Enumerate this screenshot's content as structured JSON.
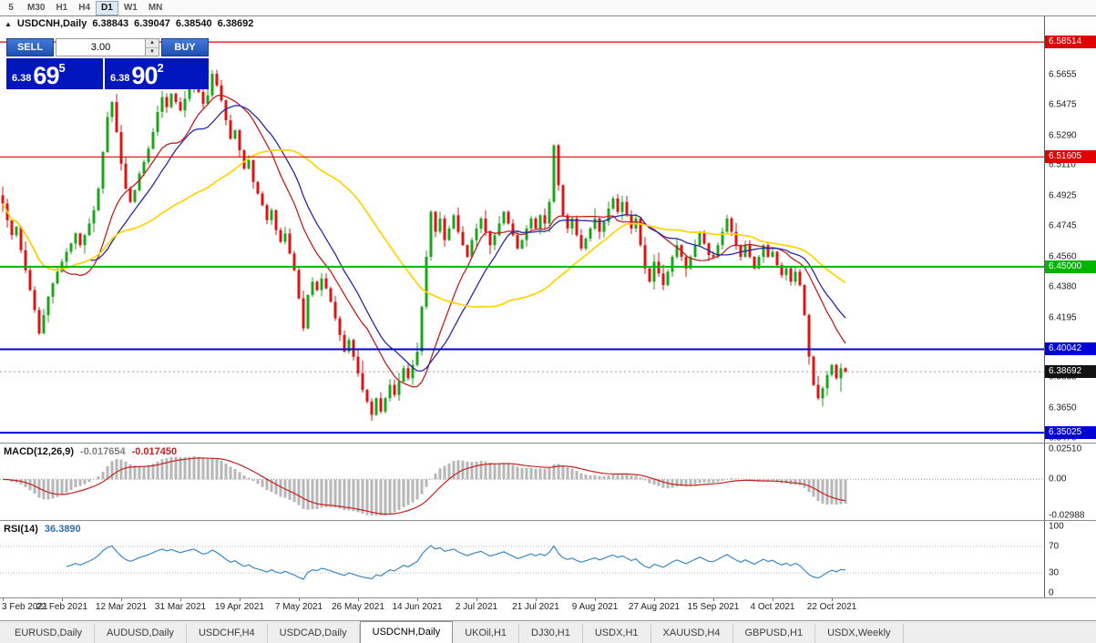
{
  "app": {
    "title": "USDCNH,Daily"
  },
  "toolbar": {
    "timeframes": [
      {
        "label": "5",
        "active": false
      },
      {
        "label": "M30",
        "active": false
      },
      {
        "label": "H1",
        "active": false
      },
      {
        "label": "H4",
        "active": false
      },
      {
        "label": "D1",
        "active": true
      },
      {
        "label": "W1",
        "active": false
      },
      {
        "label": "MN",
        "active": false
      }
    ]
  },
  "chart_header": {
    "collapse_icon": "▲",
    "symbol": "USDCNH,Daily",
    "open": "6.38843",
    "high": "6.39047",
    "low": "6.38540",
    "close": "6.38692"
  },
  "trade_widget": {
    "sell_label": "SELL",
    "buy_label": "BUY",
    "lot_value": "3.00",
    "spin_up": "▲",
    "spin_down": "▼",
    "sell_price": {
      "prefix": "6.38",
      "big": "69",
      "sup": "5"
    },
    "buy_price": {
      "prefix": "6.38",
      "big": "90",
      "sup": "2"
    }
  },
  "price_axis": {
    "labels": [
      6.5655,
      6.5475,
      6.529,
      6.511,
      6.4925,
      6.4745,
      6.456,
      6.438,
      6.4195,
      6.4015,
      6.3835,
      6.365,
      6.347
    ],
    "current_price_label": "6.38692",
    "current_price_color": "#121212"
  },
  "macd_panel": {
    "name": "MACD(12,26,9)",
    "value1": "-0.017654",
    "value2": "-0.017450",
    "axis": [
      "0.02510",
      "0.00",
      "-0.02988"
    ]
  },
  "rsi_panel": {
    "name": "RSI(14)",
    "value": "36.3890",
    "axis": [
      "100",
      "70",
      "30",
      "0"
    ]
  },
  "tabs": [
    {
      "label": "EURUSD,Daily",
      "active": false
    },
    {
      "label": "AUDUSD,Daily",
      "active": false
    },
    {
      "label": "USDCHF,H4",
      "active": false
    },
    {
      "label": "USDCAD,Daily",
      "active": false
    },
    {
      "label": "USDCNH,Daily",
      "active": true
    },
    {
      "label": "UKOil,H1",
      "active": false
    },
    {
      "label": "DJ30,H1",
      "active": false
    },
    {
      "label": "USDX,H1",
      "active": false
    },
    {
      "label": "XAUUSD,H4",
      "active": false
    },
    {
      "label": "GBPUSD,H1",
      "active": false
    },
    {
      "label": "USDX,Weekly",
      "active": false
    }
  ],
  "chart_data": {
    "type": "candlestick",
    "symbol": "USDCNH",
    "timeframe": "Daily",
    "price_top": 6.6005,
    "price_bottom": 6.3443,
    "first_open": 6.493,
    "current_price": 6.38692,
    "up_color": "#1ca41c",
    "down_color": "#dc1414",
    "ma_lines": [
      {
        "period": 14,
        "color": "#c02020",
        "width": 1.3
      },
      {
        "period": 20,
        "color": "#2828a8",
        "width": 1.3
      },
      {
        "period": 45,
        "color": "#ffd400",
        "width": 1.7
      }
    ],
    "levels": [
      {
        "price": 6.58514,
        "label": "6.58514",
        "color": "#e00000",
        "w": 1.2
      },
      {
        "price": 6.51605,
        "label": "6.51605",
        "color": "#e00000",
        "w": 1.2
      },
      {
        "price": 6.45,
        "label": "6.45000",
        "color": "#00b400",
        "w": 2
      },
      {
        "price": 6.40042,
        "label": "6.40042",
        "color": "#0000d8",
        "w": 2
      },
      {
        "price": 6.35025,
        "label": "6.35025",
        "color": "#0000d8",
        "w": 2
      }
    ],
    "x_labels": [
      {
        "i": 0,
        "t": "3 Feb 2021"
      },
      {
        "i": 13,
        "t": "22 Feb 2021"
      },
      {
        "i": 26,
        "t": "12 Mar 2021"
      },
      {
        "i": 39,
        "t": "31 Mar 2021"
      },
      {
        "i": 52,
        "t": "19 Apr 2021"
      },
      {
        "i": 65,
        "t": "7 May 2021"
      },
      {
        "i": 78,
        "t": "26 May 2021"
      },
      {
        "i": 91,
        "t": "14 Jun 2021"
      },
      {
        "i": 104,
        "t": "2 Jul 2021"
      },
      {
        "i": 117,
        "t": "21 Jul 2021"
      },
      {
        "i": 130,
        "t": "9 Aug 2021"
      },
      {
        "i": 143,
        "t": "27 Aug 2021"
      },
      {
        "i": 156,
        "t": "15 Sep 2021"
      },
      {
        "i": 169,
        "t": "4 Oct 2021"
      },
      {
        "i": 182,
        "t": "22 Oct 2021"
      }
    ],
    "closes": [
      6.488,
      6.478,
      6.469,
      6.474,
      6.46,
      6.448,
      6.436,
      6.424,
      6.41,
      6.421,
      6.432,
      6.44,
      6.447,
      6.453,
      6.459,
      6.464,
      6.47,
      6.463,
      6.469,
      6.476,
      6.484,
      6.497,
      6.519,
      6.54,
      6.549,
      6.531,
      6.512,
      6.497,
      6.489,
      6.496,
      6.506,
      6.513,
      6.521,
      6.531,
      6.543,
      6.552,
      6.546,
      6.554,
      6.549,
      6.544,
      6.551,
      6.557,
      6.562,
      6.555,
      6.548,
      6.553,
      6.566,
      6.559,
      6.55,
      6.538,
      6.527,
      6.532,
      6.52,
      6.509,
      6.514,
      6.501,
      6.494,
      6.487,
      6.478,
      6.484,
      6.472,
      6.465,
      6.47,
      6.458,
      6.448,
      6.431,
      6.413,
      6.433,
      6.441,
      6.436,
      6.443,
      6.437,
      6.429,
      6.419,
      6.409,
      6.399,
      6.406,
      6.396,
      6.386,
      6.376,
      6.369,
      6.361,
      6.371,
      6.363,
      6.371,
      6.379,
      6.373,
      6.381,
      6.389,
      6.383,
      6.391,
      6.399,
      6.426,
      6.456,
      6.483,
      6.471,
      6.479,
      6.466,
      6.473,
      6.481,
      6.471,
      6.463,
      6.456,
      6.466,
      6.473,
      6.479,
      6.471,
      6.463,
      6.469,
      6.476,
      6.483,
      6.476,
      6.469,
      6.461,
      6.466,
      6.473,
      6.479,
      6.473,
      6.481,
      6.476,
      6.489,
      6.523,
      6.499,
      6.481,
      6.473,
      6.479,
      6.469,
      6.461,
      6.467,
      6.473,
      6.479,
      6.471,
      6.477,
      6.485,
      6.491,
      6.483,
      6.489,
      6.481,
      6.473,
      6.479,
      6.463,
      6.449,
      6.441,
      6.453,
      6.446,
      6.439,
      6.447,
      6.456,
      6.463,
      6.456,
      6.449,
      6.456,
      6.463,
      6.471,
      6.464,
      6.457,
      6.456,
      6.463,
      6.471,
      6.479,
      6.471,
      6.463,
      6.456,
      6.463,
      6.456,
      6.449,
      6.456,
      6.463,
      6.456,
      6.459,
      6.451,
      6.445,
      6.449,
      6.441,
      6.447,
      6.439,
      6.421,
      6.396,
      6.379,
      6.371,
      6.377,
      6.385,
      6.391,
      6.383,
      6.389,
      6.387
    ],
    "indicators": {
      "macd": {
        "fast": 12,
        "slow": 26,
        "signal": 9,
        "histogram_color": "#b6b6b6",
        "signal_color": "#c52222",
        "axis_top": 0.0251,
        "axis_bottom": -0.02988
      },
      "rsi": {
        "period": 14,
        "color": "#3b87c8",
        "levels": [
          70,
          30
        ]
      }
    }
  }
}
